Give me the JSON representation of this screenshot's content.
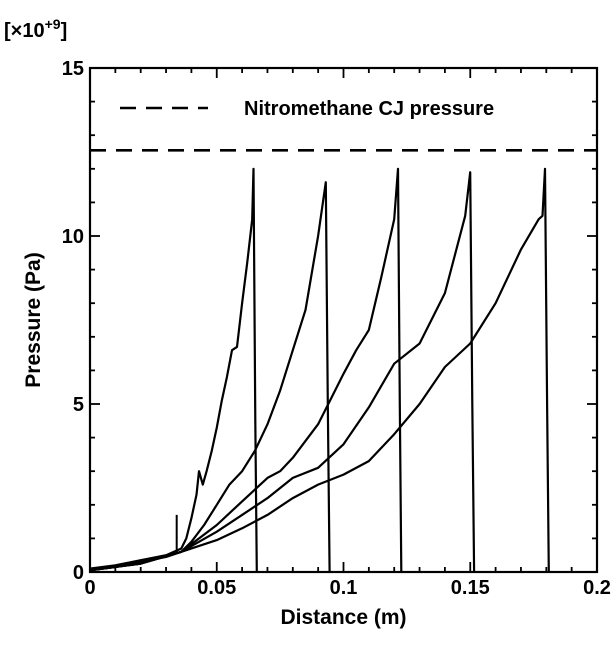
{
  "chart_data": {
    "type": "line",
    "title": "",
    "xlabel": "Distance (m)",
    "ylabel": "Pressure (Pa)",
    "y_multiplier": "[×10+9]",
    "y_multiplier_base": "[×10",
    "y_multiplier_exp": "+9",
    "y_multiplier_close": "]",
    "xlim": [
      0,
      0.2
    ],
    "ylim": [
      0,
      15
    ],
    "x_ticks": [
      0,
      0.05,
      0.1,
      0.15,
      0.2
    ],
    "x_tick_labels": [
      "0",
      "0.05",
      "0.1",
      "0.15",
      "0.2"
    ],
    "y_ticks": [
      0,
      5,
      10,
      15
    ],
    "y_tick_labels": [
      "0",
      "5",
      "10",
      "15"
    ],
    "grid": false,
    "legend": {
      "position": "top",
      "entries": [
        {
          "label": "Nitromethane CJ pressure",
          "style": "dashed"
        }
      ]
    },
    "reference_lines": [
      {
        "label": "Nitromethane CJ pressure",
        "y": 12.55,
        "style": "dashed"
      }
    ],
    "series": [
      {
        "style": "solid",
        "x": [
          0,
          0.01,
          0.02,
          0.03,
          0.036,
          0.038,
          0.04,
          0.042,
          0.043,
          0.0445,
          0.046,
          0.048,
          0.05,
          0.052,
          0.054,
          0.056,
          0.058,
          0.06,
          0.062,
          0.064,
          0.0645,
          0.0652,
          0.0658
        ],
        "y": [
          0.1,
          0.2,
          0.35,
          0.5,
          0.7,
          1.0,
          1.6,
          2.3,
          3.0,
          2.6,
          3.0,
          3.6,
          4.3,
          5.1,
          5.8,
          6.6,
          6.7,
          8.0,
          9.2,
          10.5,
          12.0,
          4.5,
          0
        ]
      },
      {
        "style": "solid",
        "x": [
          0,
          0.01,
          0.02,
          0.03,
          0.036,
          0.04,
          0.045,
          0.05,
          0.055,
          0.06,
          0.065,
          0.07,
          0.075,
          0.08,
          0.085,
          0.09,
          0.093,
          0.0938,
          0.0945
        ],
        "y": [
          0.05,
          0.15,
          0.3,
          0.45,
          0.6,
          0.9,
          1.4,
          2.0,
          2.6,
          3.0,
          3.6,
          4.4,
          5.4,
          6.6,
          7.8,
          10.0,
          11.6,
          5.0,
          0
        ]
      },
      {
        "style": "solid",
        "x": [
          0,
          0.02,
          0.036,
          0.05,
          0.06,
          0.07,
          0.075,
          0.08,
          0.09,
          0.1,
          0.105,
          0.11,
          0.115,
          0.12,
          0.1215,
          0.1222,
          0.1228
        ],
        "y": [
          0.05,
          0.25,
          0.6,
          1.4,
          2.1,
          2.8,
          3.0,
          3.4,
          4.4,
          5.9,
          6.6,
          7.2,
          8.8,
          10.5,
          12.0,
          5.0,
          0
        ]
      },
      {
        "style": "solid",
        "x": [
          0,
          0.02,
          0.036,
          0.05,
          0.06,
          0.07,
          0.08,
          0.09,
          0.1,
          0.11,
          0.12,
          0.13,
          0.14,
          0.148,
          0.15,
          0.1508,
          0.1515
        ],
        "y": [
          0.05,
          0.25,
          0.6,
          1.2,
          1.7,
          2.2,
          2.8,
          3.1,
          3.8,
          4.9,
          6.2,
          6.8,
          8.3,
          10.6,
          11.9,
          5.0,
          0
        ]
      },
      {
        "style": "solid",
        "x": [
          0,
          0.02,
          0.036,
          0.05,
          0.06,
          0.07,
          0.08,
          0.09,
          0.1,
          0.11,
          0.12,
          0.13,
          0.14,
          0.15,
          0.16,
          0.17,
          0.177,
          0.1785,
          0.1795,
          0.1803,
          0.181
        ],
        "y": [
          0.05,
          0.25,
          0.6,
          0.95,
          1.3,
          1.7,
          2.2,
          2.6,
          2.9,
          3.3,
          4.1,
          5.0,
          6.1,
          6.8,
          8.0,
          9.6,
          10.5,
          10.6,
          12.0,
          5.0,
          0
        ]
      }
    ],
    "annotations": [
      {
        "type": "spike",
        "x": 0.0342,
        "y": 1.7
      }
    ]
  }
}
